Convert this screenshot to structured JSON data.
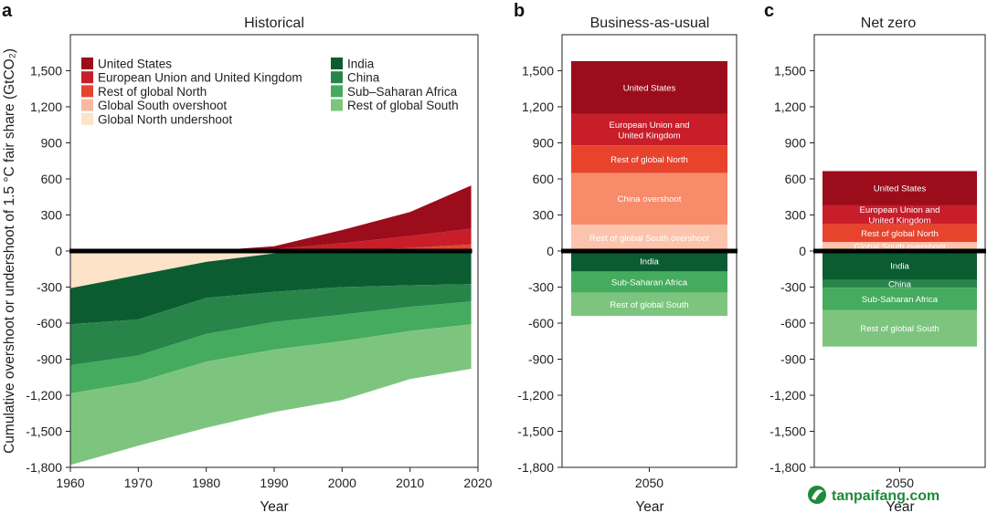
{
  "chart_data": [
    {
      "panel": "a",
      "title": "Historical",
      "type": "area",
      "xlabel": "Year",
      "ylabel": "Cumulative overshoot or undershoot of 1.5 °C fair share (GtCO₂)",
      "xlim": [
        1960,
        2020
      ],
      "ylim": [
        -1800,
        1800
      ],
      "xticks": [
        "1960",
        "1970",
        "1980",
        "1990",
        "2000",
        "2010",
        "2020"
      ],
      "yticks": [
        "1,500",
        "1,200",
        "900",
        "600",
        "300",
        "0",
        "-300",
        "-600",
        "-900",
        "-1,200",
        "-1,500",
        "-1,800"
      ],
      "x": [
        1960,
        1970,
        1980,
        1990,
        2000,
        2010,
        2019
      ],
      "positive_series": [
        {
          "name": "Rest of global North",
          "color": "#e8432d",
          "values": [
            0,
            0,
            0,
            0,
            5,
            25,
            55
          ]
        },
        {
          "name": "European Union and United Kingdom",
          "color": "#c81e2a",
          "values": [
            0,
            0,
            0,
            15,
            60,
            100,
            130
          ]
        },
        {
          "name": "United States",
          "color": "#9b0d1b",
          "values": [
            0,
            0,
            0,
            25,
            110,
            200,
            360
          ]
        }
      ],
      "negative_series": [
        {
          "name": "Global North undershoot",
          "color": "#fde3c8",
          "values": [
            -310,
            -200,
            -90,
            -20,
            0,
            0,
            0
          ]
        },
        {
          "name": "India",
          "color": "#0c5c32",
          "values": [
            -300,
            -370,
            -300,
            -320,
            -300,
            -285,
            -275
          ]
        },
        {
          "name": "China",
          "color": "#28854a",
          "values": [
            -340,
            -300,
            -300,
            -250,
            -230,
            -180,
            -145
          ]
        },
        {
          "name": "Sub–Saharan Africa",
          "color": "#45ab5e",
          "values": [
            -235,
            -220,
            -230,
            -230,
            -220,
            -200,
            -190
          ]
        },
        {
          "name": "Rest of global South",
          "color": "#7dc57f",
          "values": [
            -595,
            -530,
            -550,
            -520,
            -490,
            -400,
            -370
          ]
        }
      ],
      "legend_left": [
        "United States",
        "European Union and United Kingdom",
        "Rest of global North",
        "Global South overshoot",
        "Global North undershoot"
      ],
      "legend_right": [
        "India",
        "China",
        "Sub–Saharan Africa",
        "Rest of global South"
      ],
      "legend_colors": {
        "United States": "#9b0d1b",
        "European Union and United Kingdom": "#c81e2a",
        "Rest of global North": "#e8432d",
        "Global South overshoot": "#f9b9a0",
        "Global North undershoot": "#fde3c8",
        "India": "#0c5c32",
        "China": "#28854a",
        "Sub–Saharan Africa": "#45ab5e",
        "Rest of global South": "#7dc57f"
      }
    },
    {
      "panel": "b",
      "title": "Business-as-usual",
      "type": "bar",
      "xlabel": "Year",
      "categories": [
        "2050"
      ],
      "ylim": [
        -1800,
        1800
      ],
      "yticks": [
        "1,500",
        "1,200",
        "900",
        "600",
        "300",
        "0",
        "-300",
        "-600",
        "-900",
        "-1,200",
        "-1,500",
        "-1,800"
      ],
      "segments": [
        {
          "label": "Rest of global South overshoot",
          "value": 220,
          "color": "#fcc4ad"
        },
        {
          "label": "China overshoot",
          "value": 430,
          "color": "#f78b6a"
        },
        {
          "label": "Rest of global North",
          "value": 230,
          "color": "#e8432d"
        },
        {
          "label": "European Union and\nUnited Kingdom",
          "value": 260,
          "color": "#c81e2a"
        },
        {
          "label": "United States",
          "value": 440,
          "color": "#9b0d1b"
        },
        {
          "label": "India",
          "value": -170,
          "color": "#0c5c32"
        },
        {
          "label": "Sub-Saharan Africa",
          "value": -175,
          "color": "#45ab5e"
        },
        {
          "label": "Rest of global South",
          "value": -195,
          "color": "#7dc57f"
        }
      ]
    },
    {
      "panel": "c",
      "title": "Net zero",
      "type": "bar",
      "xlabel": "Year",
      "categories": [
        "2050"
      ],
      "ylim": [
        -1800,
        1800
      ],
      "yticks": [
        "1,500",
        "1,200",
        "900",
        "600",
        "300",
        "0",
        "-300",
        "-600",
        "-900",
        "-1,200",
        "-1,500",
        "-1,800"
      ],
      "segments": [
        {
          "label": "Global South overshoot",
          "value": 75,
          "color": "#fcc4ad"
        },
        {
          "label": "Rest of global North",
          "value": 150,
          "color": "#e8432d"
        },
        {
          "label": "European Union and\nUnited Kingdom",
          "value": 155,
          "color": "#c81e2a"
        },
        {
          "label": "United States",
          "value": 285,
          "color": "#9b0d1b"
        },
        {
          "label": "India",
          "value": -240,
          "color": "#0c5c32"
        },
        {
          "label": "China",
          "value": -65,
          "color": "#28854a"
        },
        {
          "label": "Sub-Saharan Africa",
          "value": -185,
          "color": "#45ab5e"
        },
        {
          "label": "Rest of global South",
          "value": -305,
          "color": "#7dc57f"
        }
      ]
    }
  ],
  "watermark": {
    "text": "tanpaifang.com"
  }
}
